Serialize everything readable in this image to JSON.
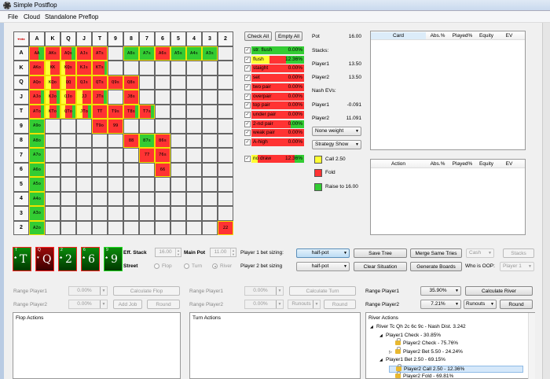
{
  "window": {
    "title": "Simple Postflop"
  },
  "menu": [
    "File",
    "Cloud",
    "Standalone",
    "Preflop"
  ],
  "colors": {
    "call": "#ffff33",
    "fold": "#ff3333",
    "raise": "#33cc33",
    "card_red_border": "#ff2222",
    "card_green_border": "#22dd22"
  },
  "grid": {
    "corner": "♥♦♣♠",
    "ranks": [
      "A",
      "K",
      "Q",
      "J",
      "T",
      "9",
      "8",
      "7",
      "6",
      "5",
      "4",
      "3",
      "2"
    ],
    "cells": [
      {
        "r": 0,
        "c": 0,
        "label": "AA",
        "mix": {
          "call": 0,
          "fold": 0.6,
          "raise": 0.4
        }
      },
      {
        "r": 0,
        "c": 1,
        "label": "AKs",
        "mix": {
          "call": 0,
          "fold": 1,
          "raise": 0
        }
      },
      {
        "r": 0,
        "c": 2,
        "label": "AQs",
        "mix": {
          "call": 0,
          "fold": 0.7,
          "raise": 0.3
        }
      },
      {
        "r": 0,
        "c": 3,
        "label": "AJs",
        "mix": {
          "call": 0,
          "fold": 1,
          "raise": 0
        }
      },
      {
        "r": 0,
        "c": 4,
        "label": "ATs",
        "mix": {
          "call": 0,
          "fold": 1,
          "raise": 0
        }
      },
      {
        "r": 0,
        "c": 6,
        "label": "A8s",
        "mix": {
          "call": 0,
          "fold": 0,
          "raise": 1
        }
      },
      {
        "r": 0,
        "c": 7,
        "label": "A7s",
        "mix": {
          "call": 0,
          "fold": 0,
          "raise": 1
        }
      },
      {
        "r": 0,
        "c": 8,
        "label": "A6s",
        "mix": {
          "call": 0,
          "fold": 1,
          "raise": 0
        }
      },
      {
        "r": 0,
        "c": 9,
        "label": "A5s",
        "mix": {
          "call": 0,
          "fold": 0,
          "raise": 1
        }
      },
      {
        "r": 0,
        "c": 10,
        "label": "A4s",
        "mix": {
          "call": 0,
          "fold": 0,
          "raise": 1
        }
      },
      {
        "r": 0,
        "c": 11,
        "label": "A3s",
        "mix": {
          "call": 0,
          "fold": 0,
          "raise": 1
        }
      },
      {
        "r": 1,
        "c": 0,
        "label": "AKo",
        "mix": {
          "call": 0,
          "fold": 1,
          "raise": 0
        }
      },
      {
        "r": 1,
        "c": 1,
        "label": "KK",
        "mix": {
          "call": 0.35,
          "fold": 0.65,
          "raise": 0
        }
      },
      {
        "r": 1,
        "c": 2,
        "label": "KQs",
        "mix": {
          "call": 0.3,
          "fold": 0.7,
          "raise": 0
        }
      },
      {
        "r": 1,
        "c": 3,
        "label": "KJs",
        "mix": {
          "call": 0,
          "fold": 1,
          "raise": 0
        }
      },
      {
        "r": 1,
        "c": 4,
        "label": "KTs",
        "mix": {
          "call": 0,
          "fold": 0.85,
          "raise": 0.15
        }
      },
      {
        "r": 2,
        "c": 0,
        "label": "AQo",
        "mix": {
          "call": 0,
          "fold": 1,
          "raise": 0
        }
      },
      {
        "r": 2,
        "c": 1,
        "label": "KQo",
        "mix": {
          "call": 0.4,
          "fold": 0.6,
          "raise": 0
        }
      },
      {
        "r": 2,
        "c": 2,
        "label": "QQ",
        "mix": {
          "call": 0.35,
          "fold": 0.65,
          "raise": 0
        }
      },
      {
        "r": 2,
        "c": 3,
        "label": "QJs",
        "mix": {
          "call": 0,
          "fold": 1,
          "raise": 0
        }
      },
      {
        "r": 2,
        "c": 4,
        "label": "QTs",
        "mix": {
          "call": 0,
          "fold": 1,
          "raise": 0
        }
      },
      {
        "r": 2,
        "c": 5,
        "label": "Q9s",
        "mix": {
          "call": 0,
          "fold": 1,
          "raise": 0
        }
      },
      {
        "r": 2,
        "c": 6,
        "label": "Q8s",
        "mix": {
          "call": 0,
          "fold": 1,
          "raise": 0
        }
      },
      {
        "r": 3,
        "c": 0,
        "label": "AJo",
        "mix": {
          "call": 0,
          "fold": 0.75,
          "raise": 0.25
        }
      },
      {
        "r": 3,
        "c": 1,
        "label": "KJo",
        "mix": {
          "call": 0.3,
          "fold": 0.5,
          "raise": 0.2
        }
      },
      {
        "r": 3,
        "c": 2,
        "label": "QJo",
        "mix": {
          "call": 0.35,
          "fold": 0.65,
          "raise": 0
        }
      },
      {
        "r": 3,
        "c": 3,
        "label": "JJ",
        "mix": {
          "call": 0.4,
          "fold": 0.6,
          "raise": 0
        }
      },
      {
        "r": 3,
        "c": 4,
        "label": "JTs",
        "mix": {
          "call": 0,
          "fold": 0.8,
          "raise": 0.2
        }
      },
      {
        "r": 3,
        "c": 6,
        "label": "J8s",
        "mix": {
          "call": 0,
          "fold": 1,
          "raise": 0
        }
      },
      {
        "r": 4,
        "c": 0,
        "label": "ATo",
        "mix": {
          "call": 0,
          "fold": 0.75,
          "raise": 0.25
        }
      },
      {
        "r": 4,
        "c": 1,
        "label": "KTo",
        "mix": {
          "call": 0.3,
          "fold": 0.5,
          "raise": 0.2
        }
      },
      {
        "r": 4,
        "c": 2,
        "label": "QTo",
        "mix": {
          "call": 0.25,
          "fold": 0.55,
          "raise": 0.2
        }
      },
      {
        "r": 4,
        "c": 3,
        "label": "JTo",
        "mix": {
          "call": 0.4,
          "fold": 0.4,
          "raise": 0.2
        }
      },
      {
        "r": 4,
        "c": 4,
        "label": "TT",
        "mix": {
          "call": 0,
          "fold": 1,
          "raise": 0
        }
      },
      {
        "r": 4,
        "c": 5,
        "label": "T9s",
        "mix": {
          "call": 0,
          "fold": 1,
          "raise": 0
        }
      },
      {
        "r": 4,
        "c": 6,
        "label": "T8s",
        "mix": {
          "call": 0,
          "fold": 0.75,
          "raise": 0.25
        }
      },
      {
        "r": 4,
        "c": 7,
        "label": "T7s",
        "mix": {
          "call": 0,
          "fold": 0.75,
          "raise": 0.25
        }
      },
      {
        "r": 5,
        "c": 0,
        "label": "A9o",
        "mix": {
          "call": 0,
          "fold": 0,
          "raise": 1
        }
      },
      {
        "r": 5,
        "c": 4,
        "label": "T9o",
        "mix": {
          "call": 0,
          "fold": 1,
          "raise": 0
        }
      },
      {
        "r": 5,
        "c": 5,
        "label": "99",
        "mix": {
          "call": 0,
          "fold": 1,
          "raise": 0
        }
      },
      {
        "r": 6,
        "c": 0,
        "label": "A8o",
        "mix": {
          "call": 0,
          "fold": 0,
          "raise": 1
        }
      },
      {
        "r": 6,
        "c": 6,
        "label": "88",
        "mix": {
          "call": 0,
          "fold": 1,
          "raise": 0
        }
      },
      {
        "r": 6,
        "c": 7,
        "label": "87s",
        "mix": {
          "call": 0,
          "fold": 0,
          "raise": 1
        }
      },
      {
        "r": 6,
        "c": 8,
        "label": "86s",
        "mix": {
          "call": 0,
          "fold": 1,
          "raise": 0
        }
      },
      {
        "r": 7,
        "c": 0,
        "label": "A7o",
        "mix": {
          "call": 0,
          "fold": 0,
          "raise": 1
        }
      },
      {
        "r": 7,
        "c": 7,
        "label": "77",
        "mix": {
          "call": 0,
          "fold": 1,
          "raise": 0
        }
      },
      {
        "r": 7,
        "c": 8,
        "label": "76s",
        "mix": {
          "call": 0,
          "fold": 1,
          "raise": 0
        }
      },
      {
        "r": 8,
        "c": 0,
        "label": "A6o",
        "mix": {
          "call": 0,
          "fold": 0,
          "raise": 1
        }
      },
      {
        "r": 8,
        "c": 8,
        "label": "66",
        "mix": {
          "call": 0,
          "fold": 1,
          "raise": 0
        }
      },
      {
        "r": 9,
        "c": 0,
        "label": "A5o",
        "mix": {
          "call": 0,
          "fold": 0,
          "raise": 1
        }
      },
      {
        "r": 10,
        "c": 0,
        "label": "A4o",
        "mix": {
          "call": 0,
          "fold": 0,
          "raise": 1
        }
      },
      {
        "r": 11,
        "c": 0,
        "label": "A3o",
        "mix": {
          "call": 0,
          "fold": 0,
          "raise": 1
        }
      },
      {
        "r": 12,
        "c": 0,
        "label": "A2o",
        "mix": {
          "call": 0,
          "fold": 0,
          "raise": 1
        }
      },
      {
        "r": 12,
        "c": 12,
        "label": "22",
        "mix": {
          "call": 0,
          "fold": 1,
          "raise": 0
        }
      }
    ]
  },
  "filters": {
    "check_all": "Check All",
    "empty_all": "Empty All",
    "categories": [
      {
        "name": "str. flush",
        "pct": "0.00%",
        "mix": {
          "call": 0,
          "fold": 0,
          "raise": 1
        }
      },
      {
        "name": "flush",
        "pct": "12.36%",
        "mix": {
          "call": 0.35,
          "fold": 0.3,
          "raise": 0.35
        }
      },
      {
        "name": "staight",
        "pct": "0.00%",
        "mix": {
          "call": 0,
          "fold": 1,
          "raise": 0
        }
      },
      {
        "name": "set",
        "pct": "0.00%",
        "mix": {
          "call": 0,
          "fold": 1,
          "raise": 0
        }
      },
      {
        "name": "two pair",
        "pct": "0.00%",
        "mix": {
          "call": 0,
          "fold": 1,
          "raise": 0
        }
      },
      {
        "name": "overpair",
        "pct": "0.00%",
        "mix": {
          "call": 0,
          "fold": 1,
          "raise": 0
        }
      },
      {
        "name": "top pair",
        "pct": "0.00%",
        "mix": {
          "call": 0,
          "fold": 1,
          "raise": 0
        }
      },
      {
        "name": "under pair",
        "pct": "0.00%",
        "mix": {
          "call": 0,
          "fold": 1,
          "raise": 0
        }
      },
      {
        "name": "2-nd pair",
        "pct": "0.00%",
        "mix": {
          "call": 0,
          "fold": 0.75,
          "raise": 0.25
        }
      },
      {
        "name": "weak pair",
        "pct": "0.00%",
        "mix": {
          "call": 0,
          "fold": 1,
          "raise": 0
        }
      },
      {
        "name": "A-high",
        "pct": "0.00%",
        "mix": {
          "call": 0,
          "fold": 1,
          "raise": 0
        }
      }
    ],
    "draw": {
      "name": "no draw",
      "pct": "12.36%",
      "mix": {
        "call": 0.12,
        "fold": 0.7,
        "raise": 0.18
      }
    }
  },
  "info": {
    "pot_label": "Pot",
    "pot": "16.00",
    "stacks_label": "Stacks:",
    "p1_label": "Player1",
    "p1_stack": "13.50",
    "p2_label": "Player2",
    "p2_stack": "13.50",
    "nash_label": "Nash EVs:",
    "p1_ev": "-0.091",
    "p2_ev": "11.091",
    "weight_select": "None weight",
    "strategy_select": "Strategy Show"
  },
  "legend": [
    {
      "label": "Call 2.50",
      "action": "call"
    },
    {
      "label": "Fold",
      "action": "fold"
    },
    {
      "label": "Raise to 16.00",
      "action": "raise"
    }
  ],
  "card_table": {
    "headers": [
      "Card",
      "Abs.%",
      "Played%",
      "Equity",
      "EV"
    ]
  },
  "action_table": {
    "headers": [
      "Action",
      "Abs.%",
      "Played%",
      "Equity",
      "EV"
    ]
  },
  "board": [
    {
      "rank": "T",
      "suit": "♣",
      "color": "green",
      "border": "red"
    },
    {
      "rank": "Q",
      "suit": "♥",
      "color": "darkred",
      "border": "red"
    },
    {
      "rank": "2",
      "suit": "♣",
      "color": "green",
      "border": "red"
    },
    {
      "rank": "6",
      "suit": "♣",
      "color": "green",
      "border": "red"
    },
    {
      "rank": "9",
      "suit": "♣",
      "color": "green",
      "border": "green"
    }
  ],
  "settings": {
    "eff_stack_label": "Eff. Stack",
    "eff_stack": "16.00",
    "main_pot_label": "Main Pot",
    "main_pot": "11.00",
    "street_label": "Street",
    "streets": [
      "Flop",
      "Turn",
      "River"
    ],
    "street_selected": "River",
    "p1_sizing_label": "Player 1 bet sizing:",
    "p1_sizing": "half-pot",
    "p2_sizing_label": "Player 2 bet sizing",
    "p2_sizing": "half-pot",
    "save_tree": "Save Tree",
    "clear_situation": "Clear Situation",
    "merge_same_tries": "Merge Same Tries",
    "generate_boards": "Generate Boards",
    "game_type": "Cash",
    "stacks": "Stacks",
    "who_oop_label": "Who is OOP:",
    "who_oop": "Player 1"
  },
  "flop": {
    "range1_label": "Range Player1",
    "range1": "0.00%",
    "range2_label": "Range Player2",
    "range2": "0.00%",
    "calculate": "Calculate Flop",
    "add_job": "Add Job",
    "round": "Round",
    "panel_title": "Flop Actions"
  },
  "turn": {
    "range1_label": "Range Player1",
    "range1": "0.00%",
    "range2_label": "Range Player2",
    "range2": "0.00%",
    "calculate": "Calculate Turn",
    "runouts": "Runouts",
    "round": "Round",
    "panel_title": "Turn Actions"
  },
  "river": {
    "range1_label": "Range Player1",
    "range1": "35.90%",
    "range2_label": "Range Player2",
    "range2": "7.21%",
    "calculate": "Calculate River",
    "runouts": "Runouts",
    "round": "Round",
    "panel_title": "River Actions",
    "tree": [
      {
        "depth": 0,
        "text": "River Tc Qh 2c 6c 9c - Nash Dist. 3.242",
        "expander": "◢",
        "lock": false
      },
      {
        "depth": 1,
        "text": "Player1 Check - 30.85%",
        "expander": "◢",
        "lock": false
      },
      {
        "depth": 2,
        "text": "Player2 Check - 75.76%",
        "expander": "",
        "lock": true
      },
      {
        "depth": 2,
        "text": "Player2 Bet 5.50 - 24.24%",
        "expander": "▷",
        "lock": true
      },
      {
        "depth": 1,
        "text": "Player1 Bet 2.50 - 69.15%",
        "expander": "◢",
        "lock": false
      },
      {
        "depth": 2,
        "text": "Player2 Call 2.50 - 12.36%",
        "expander": "",
        "lock": true,
        "selected": true
      },
      {
        "depth": 2,
        "text": "Player2 Fold - 69.81%",
        "expander": "",
        "lock": true
      }
    ]
  }
}
